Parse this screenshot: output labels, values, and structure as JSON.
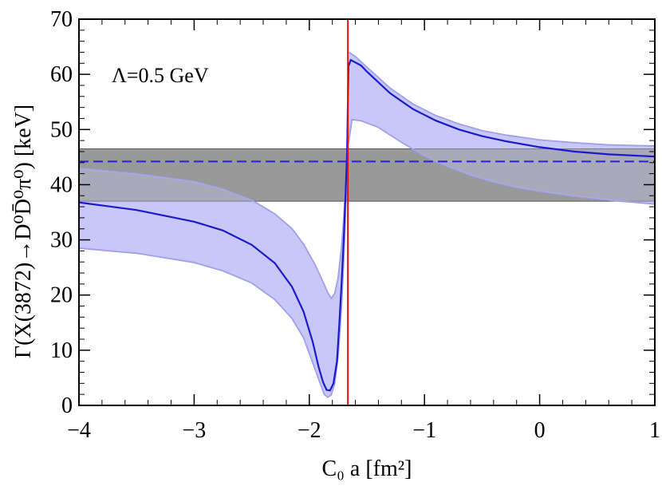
{
  "chart_data": {
    "type": "line",
    "title": "",
    "xlabel": "C₀ a [fm²]",
    "ylabel": "Γ(X(3872)→D⁰D̄⁰π⁰) [keV]",
    "annotation": "Λ=0.5 GeV",
    "xlim": [
      -4,
      1
    ],
    "ylim": [
      0,
      70
    ],
    "x_ticks": [
      -4,
      -3,
      -2,
      -1,
      0,
      1
    ],
    "x_tick_labels": [
      "−4",
      "−3",
      "−2",
      "−1",
      "0",
      "1"
    ],
    "y_ticks": [
      0,
      10,
      20,
      30,
      40,
      50,
      60,
      70
    ],
    "y_tick_labels": [
      "0",
      "10",
      "20",
      "30",
      "40",
      "50",
      "60",
      "70"
    ],
    "grid": false,
    "pole_x": -1.665,
    "experimental_band": {
      "low": 37.0,
      "high": 46.5,
      "central": 44.2
    },
    "colors": {
      "curve": "#1a1acc",
      "band_fill": "#c8c8f8",
      "band_edge": "#9a9ae6",
      "exp_band": "#999999",
      "exp_edge": "#555555",
      "exp_central": "#2222dd",
      "pole": "#e01010"
    },
    "series": [
      {
        "role": "central",
        "branch_left": [
          [
            -4.0,
            36.8
          ],
          [
            -3.5,
            35.4
          ],
          [
            -3.0,
            33.3
          ],
          [
            -2.75,
            31.7
          ],
          [
            -2.5,
            29.1
          ],
          [
            -2.3,
            25.8
          ],
          [
            -2.15,
            21.5
          ],
          [
            -2.05,
            17.0
          ],
          [
            -1.97,
            11.5
          ],
          [
            -1.92,
            7.0
          ],
          [
            -1.88,
            4.2
          ],
          [
            -1.85,
            2.8
          ],
          [
            -1.82,
            2.7
          ],
          [
            -1.79,
            4.0
          ],
          [
            -1.76,
            8.0
          ],
          [
            -1.74,
            14.5
          ],
          [
            -1.72,
            22.0
          ],
          [
            -1.7,
            30.5
          ],
          [
            -1.685,
            38.5
          ],
          [
            -1.672,
            46.0
          ]
        ],
        "branch_right": [
          [
            -1.66,
            61.5
          ],
          [
            -1.64,
            62.6
          ],
          [
            -1.55,
            61.6
          ],
          [
            -1.5,
            60.5
          ],
          [
            -1.3,
            56.6
          ],
          [
            -1.1,
            53.7
          ],
          [
            -0.9,
            51.6
          ],
          [
            -0.7,
            50.0
          ],
          [
            -0.5,
            48.8
          ],
          [
            -0.3,
            47.9
          ],
          [
            0.0,
            46.8
          ],
          [
            0.3,
            46.0
          ],
          [
            0.6,
            45.5
          ],
          [
            1.0,
            45.1
          ]
        ]
      },
      {
        "role": "upper",
        "branch_left": [
          [
            -4.0,
            43.0
          ],
          [
            -3.5,
            42.0
          ],
          [
            -3.0,
            40.6
          ],
          [
            -2.75,
            39.2
          ],
          [
            -2.5,
            37.2
          ],
          [
            -2.3,
            34.7
          ],
          [
            -2.15,
            32.0
          ],
          [
            -2.05,
            29.2
          ],
          [
            -1.95,
            25.5
          ],
          [
            -1.88,
            22.3
          ],
          [
            -1.84,
            20.4
          ],
          [
            -1.81,
            19.4
          ],
          [
            -1.78,
            20.2
          ],
          [
            -1.75,
            23.0
          ],
          [
            -1.72,
            28.5
          ],
          [
            -1.7,
            34.0
          ],
          [
            -1.685,
            40.0
          ],
          [
            -1.672,
            46.5
          ]
        ],
        "branch_right": [
          [
            -1.655,
            64.0
          ],
          [
            -1.6,
            63.2
          ],
          [
            -1.5,
            61.3
          ],
          [
            -1.3,
            57.5
          ],
          [
            -1.1,
            54.6
          ],
          [
            -0.9,
            52.5
          ],
          [
            -0.7,
            51.0
          ],
          [
            -0.5,
            49.8
          ],
          [
            -0.3,
            49.0
          ],
          [
            0.0,
            48.1
          ],
          [
            0.3,
            47.6
          ],
          [
            0.6,
            47.2
          ],
          [
            1.0,
            47.0
          ]
        ]
      },
      {
        "role": "lower",
        "branch_left": [
          [
            -4.0,
            28.5
          ],
          [
            -3.5,
            27.6
          ],
          [
            -3.0,
            25.9
          ],
          [
            -2.75,
            24.4
          ],
          [
            -2.5,
            22.2
          ],
          [
            -2.3,
            19.2
          ],
          [
            -2.15,
            15.8
          ],
          [
            -2.05,
            12.3
          ],
          [
            -1.97,
            7.8
          ],
          [
            -1.91,
            4.3
          ],
          [
            -1.87,
            2.0
          ],
          [
            -1.84,
            1.5
          ],
          [
            -1.81,
            1.9
          ],
          [
            -1.78,
            4.0
          ],
          [
            -1.75,
            9.0
          ],
          [
            -1.72,
            18.0
          ],
          [
            -1.7,
            27.0
          ],
          [
            -1.685,
            36.0
          ],
          [
            -1.672,
            45.0
          ]
        ],
        "branch_right": [
          [
            -1.66,
            47.5
          ],
          [
            -1.63,
            51.8
          ],
          [
            -1.55,
            51.6
          ],
          [
            -1.4,
            50.4
          ],
          [
            -1.2,
            47.7
          ],
          [
            -1.0,
            45.2
          ],
          [
            -0.8,
            43.3
          ],
          [
            -0.6,
            41.7
          ],
          [
            -0.4,
            40.5
          ],
          [
            -0.2,
            39.5
          ],
          [
            0.0,
            38.8
          ],
          [
            0.3,
            37.9
          ],
          [
            0.6,
            37.2
          ],
          [
            1.0,
            36.5
          ]
        ]
      }
    ]
  }
}
